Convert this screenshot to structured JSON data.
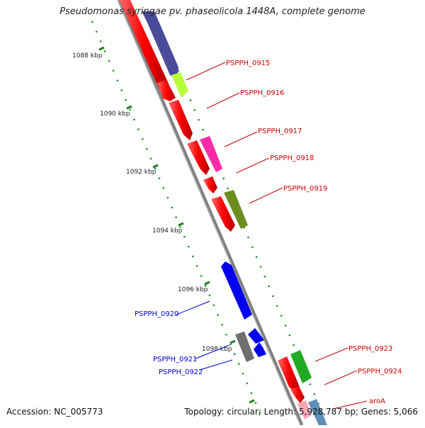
{
  "title": "Pseudomonas syringae pv. phaseolicola 1448A, complete genome",
  "accession": "Accession: NC_005773",
  "topology": "Topology: circular; Length: 5,928,787 bp; Genes: 5,066",
  "colors": {
    "forward_gene": "#ff0000",
    "reverse_gene": "#0000ee",
    "backbone": "#808080",
    "tick": "#1a7f1a",
    "fwd_label": "#cc0000",
    "rev_label": "#0000cc"
  },
  "kbp_ticks": [
    "1088 kbp",
    "1090 kbp",
    "1092 kbp",
    "1094 kbp",
    "1096 kbp",
    "1098 kbp"
  ],
  "gene_labels_forward": [
    "PSPPH_0915",
    "PSPPH_0916",
    "PSPPH_0917",
    "PSPPH_0918",
    "PSPPH_0919",
    "PSPPH_0923",
    "PSPPH_0924",
    "aroA"
  ],
  "gene_labels_reverse": [
    "PSPPH_0920",
    "PSPPH_0921",
    "PSPPH_0922"
  ]
}
